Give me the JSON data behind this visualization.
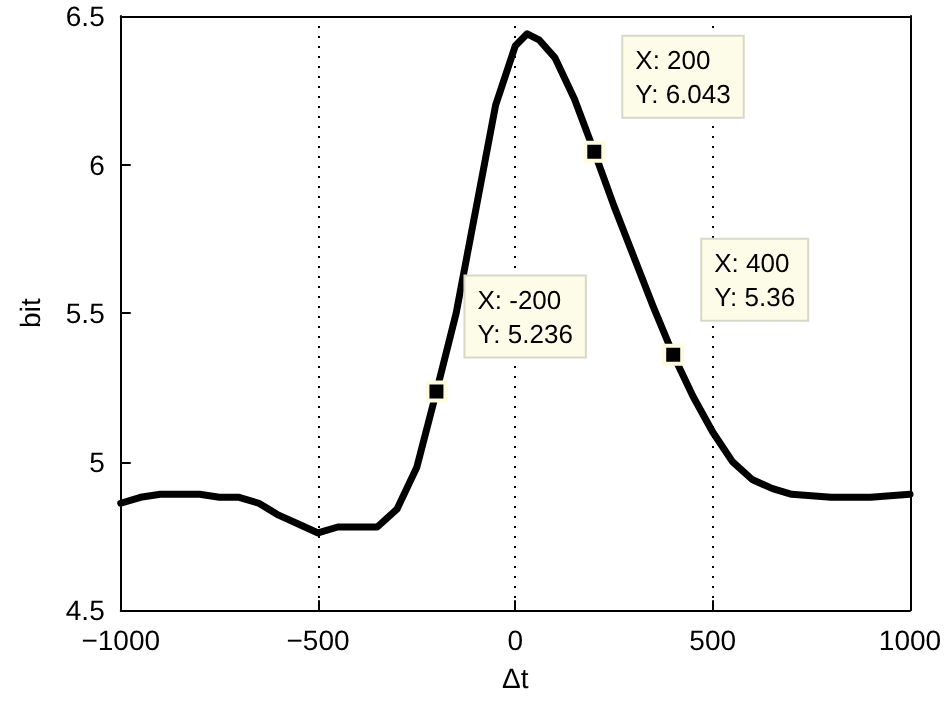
{
  "chart_data": {
    "type": "line",
    "xlabel": "Δt",
    "ylabel": "bit",
    "x": [
      -1000,
      -950,
      -900,
      -850,
      -800,
      -750,
      -700,
      -650,
      -600,
      -550,
      -500,
      -450,
      -400,
      -350,
      -300,
      -250,
      -200,
      -150,
      -100,
      -50,
      0,
      30,
      60,
      100,
      150,
      200,
      250,
      300,
      350,
      400,
      450,
      500,
      550,
      600,
      650,
      700,
      800,
      900,
      1000
    ],
    "series": [
      {
        "color": "#000000",
        "values": [
          4.86,
          4.88,
          4.89,
          4.89,
          4.89,
          4.88,
          4.88,
          4.86,
          4.82,
          4.79,
          4.76,
          4.78,
          4.78,
          4.78,
          4.84,
          4.98,
          5.236,
          5.5,
          5.85,
          6.2,
          6.4,
          6.44,
          6.42,
          6.36,
          6.22,
          6.043,
          5.86,
          5.69,
          5.52,
          5.36,
          5.22,
          5.1,
          5.0,
          4.94,
          4.91,
          4.89,
          4.88,
          4.88,
          4.89
        ]
      }
    ],
    "annotations": [
      {
        "text": "X: -200\nY: 5.236",
        "x": -200,
        "y": 5.236
      },
      {
        "text": "X: 200\nY: 6.043",
        "x": 200,
        "y": 6.043
      },
      {
        "text": "X: 400\nY: 5.36",
        "x": 400,
        "y": 5.36
      }
    ],
    "xlim": [
      -1000,
      1000
    ],
    "xticks": [
      -1000,
      -500,
      0,
      500,
      1000
    ],
    "ylim": [
      4.5,
      6.5
    ],
    "yticks": [
      4.5,
      5,
      5.5,
      6,
      6.5
    ],
    "grid": "x",
    "marker": "none",
    "line_style": "solid"
  }
}
